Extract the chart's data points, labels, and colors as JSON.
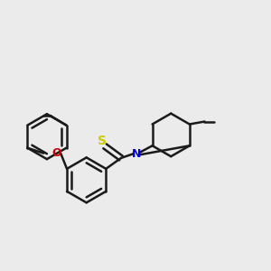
{
  "background_color": "#ebebeb",
  "bond_color": "#1a1a1a",
  "bond_width": 1.8,
  "S_color": "#cccc00",
  "N_color": "#0000cc",
  "O_color": "#cc0000",
  "C_color": "#1a1a1a",
  "figsize": [
    3.0,
    3.0
  ],
  "dpi": 100,
  "xlim": [
    -2.4,
    2.6
  ],
  "ylim": [
    -1.5,
    1.9
  ]
}
